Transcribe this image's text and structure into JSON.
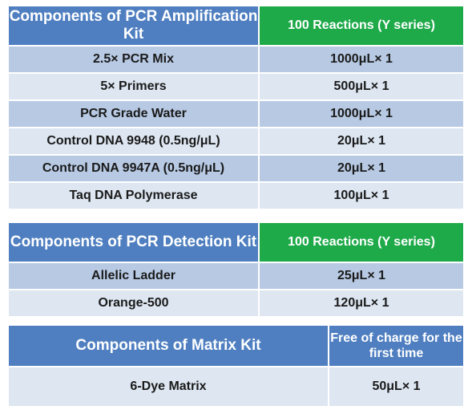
{
  "pcr_kit": {
    "header": {
      "component": "Components of PCR Amplification Kit",
      "quantity": "100 Reactions (Y series)"
    },
    "rows": [
      {
        "component": "2.5× PCR Mix",
        "quantity": "1000μL× 1"
      },
      {
        "component": "5× Primers",
        "quantity": "500μL× 1"
      },
      {
        "component": "PCR Grade Water",
        "quantity": "1000μL× 1"
      },
      {
        "component": "Control DNA 9948 (0.5ng/μL)",
        "quantity": "20μL× 1"
      },
      {
        "component": "Control DNA 9947A (0.5ng/μL)",
        "quantity": "20μL× 1"
      },
      {
        "component": "Taq DNA Polymerase",
        "quantity": "100μL× 1"
      }
    ]
  },
  "detection_kit": {
    "header": {
      "component": "Components of PCR Detection Kit",
      "quantity": "100 Reactions (Y series)"
    },
    "rows": [
      {
        "component": "Allelic Ladder",
        "quantity": "25μL× 1"
      },
      {
        "component": "Orange-500",
        "quantity": "120μL× 1"
      }
    ]
  },
  "matrix_kit": {
    "header": {
      "component": "Components of Matrix Kit",
      "quantity": "Free of charge for the first time"
    },
    "rows": [
      {
        "component": "6-Dye Matrix",
        "quantity": "50μL× 1"
      }
    ]
  },
  "colors": {
    "header_blue": "#4f7fc0",
    "header_green": "#1faa4a",
    "row_shade": "#b7c9e3",
    "row_light": "#dde6f1"
  }
}
